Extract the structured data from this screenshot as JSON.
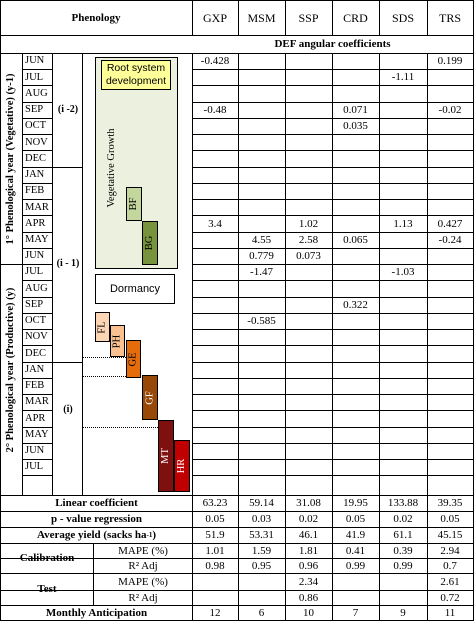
{
  "header": {
    "phenology": "Phenology",
    "def_title": "DEF angular coefficients",
    "columns": [
      "GXP",
      "MSM",
      "SSP",
      "CRD",
      "SDS",
      "TRS"
    ]
  },
  "months": [
    "JUN",
    "JUL",
    "AUG",
    "SEP",
    "OCT",
    "NOV",
    "DEC",
    "JAN",
    "FEB",
    "MAR",
    "APR",
    "MAY",
    "JUN",
    "JUL",
    "AUG",
    "SEP",
    "OCT",
    "NOV",
    "DEC",
    "JAN",
    "FEB",
    "MAR",
    "APR",
    "MAY",
    "JUN",
    "JUL"
  ],
  "year_labels": {
    "vegetative": "1° Phenological year (Vegetative) (y-1)",
    "productive": "2° Phenological year (Productive) (y)"
  },
  "period_labels": {
    "i2": "(i -2)",
    "i1": "(i - 1)",
    "i": "(i)"
  },
  "stages": {
    "root": "Root system development",
    "vegetative_growth": "Vegetative Growth",
    "bf": "BF",
    "bg": "BG",
    "dormancy": "Dormancy",
    "fl": "FL",
    "ph": "PH",
    "ge": "GE",
    "gf": "GF",
    "mt": "MT",
    "hr": "HR"
  },
  "colors": {
    "root_box": "#ffff99",
    "veg_panel": "#ebf1de",
    "bf": "#c3d69b",
    "bg": "#77933c",
    "fl": "#fcd5b5",
    "ph": "#fac090",
    "ge": "#e46c0a",
    "gf": "#984807",
    "mt": "#7f1010",
    "hr": "#c00000"
  },
  "coefficients": [
    [
      "-0.428",
      "",
      "",
      "",
      "",
      "0.199"
    ],
    [
      "",
      "",
      "",
      "",
      "-1.11",
      ""
    ],
    [
      "",
      "",
      "",
      "",
      "",
      ""
    ],
    [
      "-0.48",
      "",
      "",
      "0.071",
      "",
      "-0.02"
    ],
    [
      "",
      "",
      "",
      "0.035",
      "",
      ""
    ],
    [
      "",
      "",
      "",
      "",
      "",
      ""
    ],
    [
      "",
      "",
      "",
      "",
      "",
      ""
    ],
    [
      "",
      "",
      "",
      "",
      "",
      ""
    ],
    [
      "",
      "",
      "",
      "",
      "",
      ""
    ],
    [
      "",
      "",
      "",
      "",
      "",
      ""
    ],
    [
      "3.4",
      "",
      "1.02",
      "",
      "1.13",
      "0.427"
    ],
    [
      "",
      "4.55",
      "2.58",
      "0.065",
      "",
      "-0.24"
    ],
    [
      "",
      "0.779",
      "0.073",
      "",
      "",
      ""
    ],
    [
      "",
      "-1.47",
      "",
      "",
      "-1.03",
      ""
    ],
    [
      "",
      "",
      "",
      "",
      "",
      ""
    ],
    [
      "",
      "",
      "",
      "0.322",
      "",
      ""
    ],
    [
      "",
      "-0.585",
      "",
      "",
      "",
      ""
    ],
    [
      "",
      "",
      "",
      "",
      "",
      ""
    ],
    [
      "",
      "",
      "",
      "",
      "",
      ""
    ],
    [
      "",
      "",
      "",
      "",
      "",
      ""
    ],
    [
      "",
      "",
      "",
      "",
      "",
      ""
    ],
    [
      "",
      "",
      "",
      "",
      "",
      ""
    ],
    [
      "",
      "",
      "",
      "",
      "",
      ""
    ],
    [
      "",
      "",
      "",
      "",
      "",
      ""
    ],
    [
      "",
      "",
      "",
      "",
      "",
      ""
    ],
    [
      "",
      "",
      "",
      "",
      "",
      ""
    ]
  ],
  "summary": {
    "linear": {
      "label": "Linear coefficient",
      "values": [
        "63.23",
        "59.14",
        "31.08",
        "19.95",
        "133.88",
        "39.35"
      ]
    },
    "pvalue": {
      "label": "p - value regression",
      "values": [
        "0.05",
        "0.03",
        "0.02",
        "0.05",
        "0.02",
        "0.05"
      ]
    },
    "yield": {
      "label": "Average yield (sacks ha",
      "sup": "-1",
      "close": ")",
      "values": [
        "51.9",
        "53.31",
        "46.1",
        "41.9",
        "61.1",
        "45.15"
      ]
    },
    "calibration": {
      "label": "Calibration",
      "mape_label": "MAPE (%)",
      "r2_label": "R² Adj",
      "mape": [
        "1.01",
        "1.59",
        "1.81",
        "0.41",
        "0.39",
        "2.94"
      ],
      "r2": [
        "0.98",
        "0.95",
        "0.96",
        "0.99",
        "0.99",
        "0.7"
      ]
    },
    "test": {
      "label": "Test",
      "mape_label": "MAPE (%)",
      "r2_label": "R² Adj",
      "mape": [
        "",
        "",
        "2.34",
        "",
        "",
        "2.61"
      ],
      "r2": [
        "",
        "",
        "0.86",
        "",
        "",
        "0.72"
      ]
    },
    "anticipation": {
      "label": "Monthly Anticipation",
      "values": [
        "12",
        "6",
        "10",
        "7",
        "9",
        "11"
      ]
    }
  }
}
